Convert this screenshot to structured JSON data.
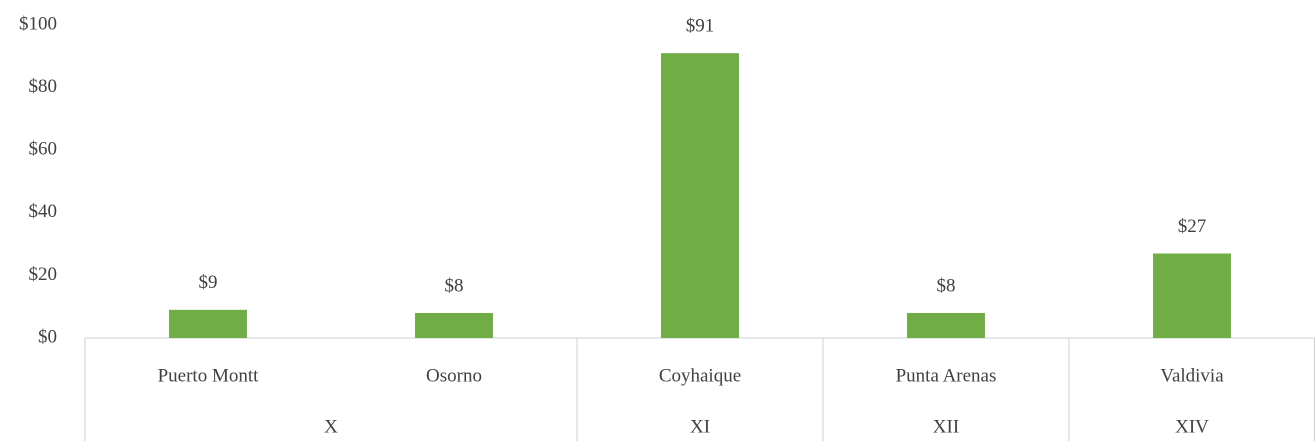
{
  "chart_data": {
    "type": "bar",
    "categories": [
      "Puerto Montt",
      "Osorno",
      "Coyhaique",
      "Punta Arenas",
      "Valdivia"
    ],
    "groups": [
      {
        "name": "X",
        "size": 2
      },
      {
        "name": "XI",
        "size": 1
      },
      {
        "name": "XII",
        "size": 1
      },
      {
        "name": "XIV",
        "size": 1
      }
    ],
    "values": [
      9,
      8,
      91,
      8,
      27
    ],
    "value_labels": [
      "$9",
      "$8",
      "$91",
      "$8",
      "$27"
    ],
    "color": "#70ad47",
    "ylim": [
      0,
      100
    ],
    "yticks": [
      {
        "value": 0,
        "label": "$0"
      },
      {
        "value": 20,
        "label": "$20"
      },
      {
        "value": 40,
        "label": "$40"
      },
      {
        "value": 60,
        "label": "$60"
      },
      {
        "value": 80,
        "label": "$80"
      },
      {
        "value": 100,
        "label": "$100"
      }
    ],
    "grid": false
  }
}
